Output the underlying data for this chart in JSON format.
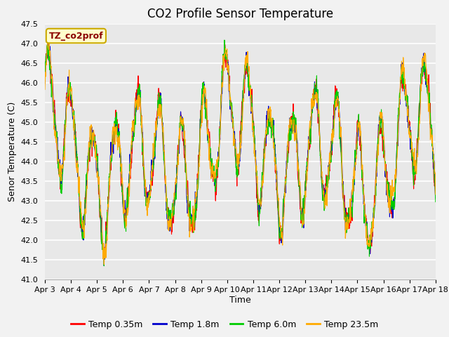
{
  "title": "CO2 Profile Sensor Temperature",
  "ylabel": "Senor Temperature (C)",
  "xlabel": "Time",
  "ylim": [
    41.0,
    47.5
  ],
  "fig_facecolor": "#f2f2f2",
  "plot_bg_color": "#e8e8e8",
  "annotation_text": "TZ_co2prof",
  "annotation_color": "#8B0000",
  "annotation_bg": "#ffffcc",
  "annotation_border": "#ccaa00",
  "series": [
    {
      "label": "Temp 0.35m",
      "color": "#ff0000"
    },
    {
      "label": "Temp 1.8m",
      "color": "#0000cc"
    },
    {
      "label": "Temp 6.0m",
      "color": "#00cc00"
    },
    {
      "label": "Temp 23.5m",
      "color": "#ffaa00"
    }
  ],
  "xtick_labels": [
    "Apr 3",
    "Apr 4",
    "Apr 5",
    "Apr 6",
    "Apr 7",
    "Apr 8",
    "Apr 9",
    "Apr 10",
    "Apr 11",
    "Apr 12",
    "Apr 13",
    "Apr 14",
    "Apr 15",
    "Apr 16",
    "Apr 17",
    "Apr 18"
  ],
  "title_fontsize": 12,
  "label_fontsize": 9,
  "tick_fontsize": 8,
  "legend_fontsize": 9
}
